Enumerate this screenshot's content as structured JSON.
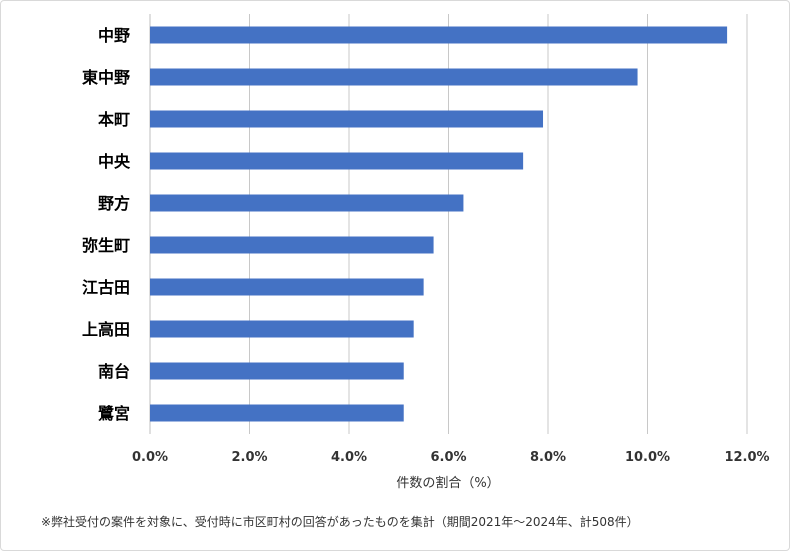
{
  "chart_data": {
    "type": "bar",
    "orientation": "horizontal",
    "categories": [
      "中野",
      "東中野",
      "本町",
      "中央",
      "野方",
      "弥生町",
      "江古田",
      "上高田",
      "南台",
      "鷺宮"
    ],
    "values": [
      11.6,
      9.8,
      7.9,
      7.5,
      6.3,
      5.7,
      5.5,
      5.3,
      5.1,
      5.1
    ],
    "xlabel": "件数の割合（%）",
    "xlim": [
      0,
      12
    ],
    "xticks": [
      "0.0%",
      "2.0%",
      "4.0%",
      "6.0%",
      "8.0%",
      "10.0%",
      "12.0%"
    ],
    "grid": true,
    "bar_color": "#4472c4",
    "legend": "none"
  },
  "footnote": "※弊社受付の案件を対象に、受付時に市区町村の回答があったものを集計（期間2021年～2024年、計508件）"
}
